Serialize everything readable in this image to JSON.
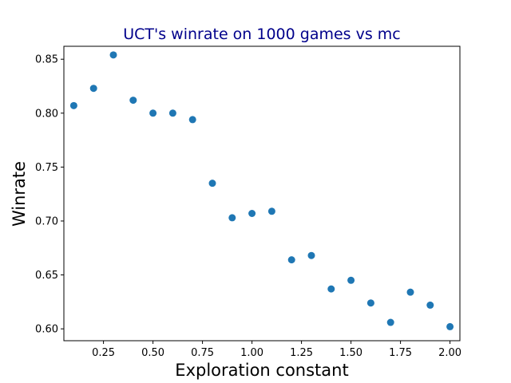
{
  "chart_data": {
    "type": "scatter",
    "title": "UCT's winrate on 1000 games vs mc",
    "xlabel": "Exploration constant",
    "ylabel": "Winrate",
    "xlim": [
      0.05,
      2.05
    ],
    "ylim": [
      0.589,
      0.862
    ],
    "x_ticks": [
      0.25,
      0.5,
      0.75,
      1.0,
      1.25,
      1.5,
      1.75,
      2.0
    ],
    "x_tick_labels": [
      "0.25",
      "0.50",
      "0.75",
      "1.00",
      "1.25",
      "1.50",
      "1.75",
      "2.00"
    ],
    "y_ticks": [
      0.6,
      0.65,
      0.7,
      0.75,
      0.8,
      0.85
    ],
    "y_tick_labels": [
      "0.60",
      "0.65",
      "0.70",
      "0.75",
      "0.80",
      "0.85"
    ],
    "grid": false,
    "series": [
      {
        "x": [
          0.1,
          0.2,
          0.3,
          0.4,
          0.5,
          0.6,
          0.7,
          0.8,
          0.9,
          1.0,
          1.1,
          1.2,
          1.3,
          1.4,
          1.5,
          1.6,
          1.7,
          1.8,
          1.9,
          2.0
        ],
        "y": [
          0.807,
          0.823,
          0.854,
          0.812,
          0.8,
          0.8,
          0.794,
          0.735,
          0.703,
          0.707,
          0.709,
          0.664,
          0.668,
          0.637,
          0.645,
          0.624,
          0.606,
          0.634,
          0.622,
          0.602
        ]
      }
    ],
    "colors": {
      "marker": "#1f77b4",
      "title": "#00008b",
      "axes": "#000000"
    }
  }
}
